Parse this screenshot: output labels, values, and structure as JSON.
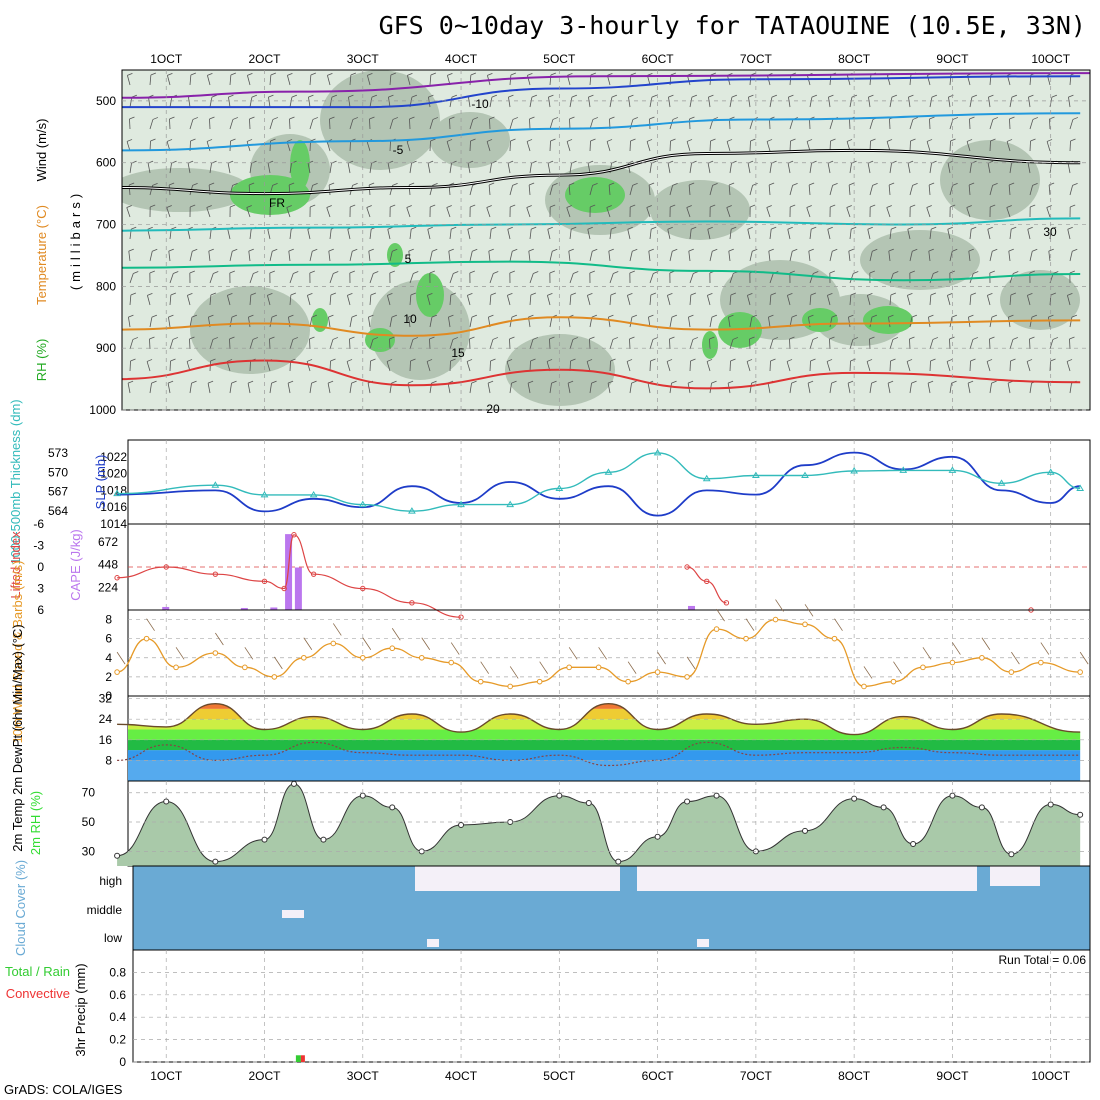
{
  "page": {
    "title": "GFS 0~10day 3-hourly for TATAOUINE (10.5E, 33N)",
    "credit": "GrADS: COLA/IGES"
  },
  "colors": {
    "rh_light": "#dfeadf",
    "rh_mid": "#b4c5b4",
    "rh_green": "#66cc66",
    "slp": "#1e3cc8",
    "thickness": "#33bbbb",
    "lifted": "#dd4444",
    "cape": "#bb77ee",
    "wind_speed": "#e69a28",
    "temp_fill": "#c97a2e",
    "rh2m": "#33dd33",
    "cloud": "#6aaad4",
    "precip_total": "#33cc33",
    "precip_conv": "#ee3333"
  },
  "chart_data": [
    {
      "type": "heatmap",
      "panel": "upper-air",
      "ylabel": "(millibars)",
      "side_labels": [
        "RH (%)",
        "Temperature (°C)",
        "Wind (m/s)"
      ],
      "x_tick_labels": [
        "1OCT",
        "2OCT",
        "3OCT",
        "4OCT",
        "5OCT",
        "6OCT",
        "7OCT",
        "8OCT",
        "9OCT",
        "10OCT"
      ],
      "y_ticks": [
        500,
        600,
        700,
        800,
        900,
        1000
      ],
      "contour_labels": [
        "-10",
        "-5",
        "FR",
        "5",
        "10",
        "15",
        "20",
        "30"
      ],
      "isotherms": [
        {
          "name": "-10",
          "x": [
            0.5,
            3,
            5,
            7,
            10.3
          ],
          "p": [
            510,
            510,
            480,
            465,
            460
          ]
        },
        {
          "name": "-5",
          "x": [
            0.5,
            3,
            5,
            7,
            10.3
          ],
          "p": [
            580,
            565,
            545,
            530,
            520
          ]
        },
        {
          "name": "FR",
          "x": [
            0.5,
            2,
            3.5,
            5,
            6.5,
            8,
            10.3
          ],
          "p": [
            640,
            650,
            640,
            620,
            585,
            580,
            600
          ]
        },
        {
          "name": "5",
          "x": [
            0.5,
            2.5,
            4.5,
            6.5,
            8.5,
            10.3
          ],
          "p": [
            710,
            705,
            700,
            695,
            700,
            690
          ]
        },
        {
          "name": "10",
          "x": [
            0.5,
            2.5,
            4.5,
            6.5,
            8.5,
            10.3
          ],
          "p": [
            770,
            765,
            760,
            775,
            790,
            780
          ]
        },
        {
          "name": "15",
          "x": [
            0.5,
            2,
            3.5,
            5,
            6.5,
            8,
            10.3
          ],
          "p": [
            870,
            860,
            880,
            850,
            870,
            860,
            855
          ]
        },
        {
          "name": "20",
          "x": [
            0.5,
            2,
            3.5,
            5,
            6.5,
            8,
            10.3
          ],
          "p": [
            950,
            920,
            960,
            935,
            965,
            940,
            955
          ]
        }
      ]
    },
    {
      "type": "line",
      "panel": "slp-thickness",
      "ylabel_left": "1000-500mb Thickness (dm)",
      "ylabel_right": "SLP (mb)",
      "y_ticks_left": [
        "573",
        "570",
        "567",
        "564"
      ],
      "y_ticks_right": [
        "1022",
        "1020",
        "1018",
        "1016",
        "1014"
      ],
      "series": [
        {
          "name": "SLP (mb)",
          "x": [
            0.5,
            1.5,
            2.0,
            2.5,
            3.0,
            3.5,
            4.0,
            4.5,
            5.0,
            5.5,
            6.0,
            6.5,
            7.0,
            7.5,
            8.0,
            8.5,
            9.0,
            9.5,
            10.0,
            10.3
          ],
          "values": [
            1017.5,
            1018,
            1015.5,
            1017,
            1016,
            1018.5,
            1016.5,
            1019,
            1017,
            1018.5,
            1015,
            1018,
            1017.5,
            1021,
            1022.5,
            1020.5,
            1022,
            1018,
            1016.5,
            1018.5
          ]
        },
        {
          "name": "1000-500mb Thickness (dm)",
          "x": [
            0.5,
            1.5,
            2.0,
            2.5,
            3.0,
            3.5,
            4.0,
            4.5,
            5.0,
            5.5,
            6.0,
            6.5,
            7.0,
            7.5,
            8.0,
            8.5,
            9.0,
            9.5,
            10.0,
            10.3
          ],
          "values": [
            566.7,
            568,
            566.5,
            566.5,
            565,
            564,
            565,
            565,
            567.5,
            570,
            573,
            569,
            569.5,
            569.5,
            570.2,
            570.3,
            570.3,
            568.3,
            570,
            567.5
          ]
        }
      ]
    },
    {
      "type": "bar",
      "panel": "stability",
      "ylabel_left": "Lifted Index",
      "ylabel_right": "CAPE (J/kg)",
      "y_ticks_left": [
        "-6",
        "-3",
        "0",
        "3",
        "6"
      ],
      "y_ticks_right": [
        "672",
        "448",
        "224"
      ],
      "series": [
        {
          "name": "Lifted Index",
          "x": [
            0.5,
            1.0,
            1.5,
            2.0,
            2.2,
            2.3,
            2.5,
            3.0,
            3.5,
            4.0,
            6.3,
            6.5,
            6.7,
            9.8
          ],
          "values": [
            1.5,
            0,
            1,
            2,
            3,
            -4.5,
            1,
            3,
            5,
            7,
            0,
            2,
            5,
            6
          ]
        },
        {
          "name": "CAPE (J/kg)",
          "x": [
            1.0,
            1.8,
            2.1,
            2.25,
            2.35,
            6.35
          ],
          "values": [
            30,
            20,
            25,
            750,
            420,
            40
          ]
        }
      ]
    },
    {
      "type": "line",
      "panel": "wind10m",
      "ylabel": "10m Wind Speed & Barbs (m/s)",
      "y_ticks": [
        "0",
        "2",
        "4",
        "6",
        "8"
      ],
      "x": [
        0.5,
        0.8,
        1.1,
        1.5,
        1.8,
        2.1,
        2.4,
        2.7,
        3.0,
        3.3,
        3.6,
        3.9,
        4.2,
        4.5,
        4.8,
        5.1,
        5.4,
        5.7,
        6.0,
        6.3,
        6.6,
        6.9,
        7.2,
        7.5,
        7.8,
        8.1,
        8.4,
        8.7,
        9.0,
        9.3,
        9.6,
        9.9,
        10.3
      ],
      "values": [
        2.5,
        6,
        3,
        4.5,
        3,
        2,
        4,
        5.5,
        4,
        5,
        4,
        3.5,
        1.5,
        1,
        1.5,
        3,
        3,
        1.5,
        2.5,
        2,
        7,
        6,
        8,
        7.5,
        6,
        1,
        1.5,
        3,
        3.5,
        4,
        2.5,
        3.5,
        2.5
      ]
    },
    {
      "type": "area",
      "panel": "temp-dewpt",
      "ylabel": "2m Temp 2m DewPt (6hr Min/Max) (°C)",
      "y_ticks": [
        "8",
        "16",
        "24",
        "32"
      ],
      "series": [
        {
          "name": "2m Temp",
          "x": [
            0.5,
            1.0,
            1.5,
            2.0,
            2.5,
            3.0,
            3.5,
            4.0,
            4.5,
            5.0,
            5.5,
            6.0,
            6.5,
            7.0,
            7.5,
            8.0,
            8.5,
            9.0,
            9.5,
            10.3
          ],
          "values": [
            22,
            21,
            30,
            20,
            25,
            20,
            26,
            19,
            26,
            20,
            30,
            20,
            26,
            22,
            24,
            18,
            25,
            20,
            26,
            19
          ]
        },
        {
          "name": "2m DewPt",
          "x": [
            0.5,
            1.0,
            1.5,
            2.0,
            2.5,
            3.0,
            3.5,
            4.0,
            4.5,
            5.0,
            5.5,
            6.0,
            6.5,
            7.0,
            7.5,
            8.0,
            8.5,
            9.0,
            9.5,
            10.3
          ],
          "values": [
            8,
            14,
            8,
            10,
            15,
            11,
            10,
            10,
            8,
            10,
            6,
            8,
            15,
            10,
            11,
            11,
            13,
            11,
            10,
            10
          ]
        }
      ]
    },
    {
      "type": "area",
      "panel": "rh2m",
      "ylabel": "2m RH (%)",
      "y_ticks": [
        "30",
        "50",
        "70"
      ],
      "x": [
        0.5,
        1.0,
        1.5,
        2.0,
        2.3,
        2.6,
        3.0,
        3.3,
        3.6,
        4.0,
        4.5,
        5.0,
        5.3,
        5.6,
        6.0,
        6.3,
        6.6,
        7.0,
        7.5,
        8.0,
        8.3,
        8.6,
        9.0,
        9.3,
        9.6,
        10.0,
        10.3
      ],
      "values": [
        27,
        64,
        23,
        38,
        76,
        38,
        68,
        60,
        30,
        48,
        50,
        68,
        63,
        23,
        40,
        64,
        68,
        30,
        44,
        66,
        60,
        35,
        68,
        60,
        28,
        62,
        55
      ]
    },
    {
      "type": "heatmap",
      "panel": "cloud-cover",
      "ylabel": "Cloud Cover (%)",
      "row_labels": [
        "high",
        "middle",
        "low"
      ]
    },
    {
      "type": "bar",
      "panel": "precip",
      "ylabel": "3hr Precip (mm)",
      "legend_label": "Total / Rain",
      "legend_label_2": "Convective",
      "annotation": "Run Total = 0.06",
      "y_ticks": [
        "0",
        "0.2",
        "0.4",
        "0.6",
        "0.8"
      ],
      "x": [
        2.35
      ],
      "values": [
        0.06
      ]
    }
  ]
}
